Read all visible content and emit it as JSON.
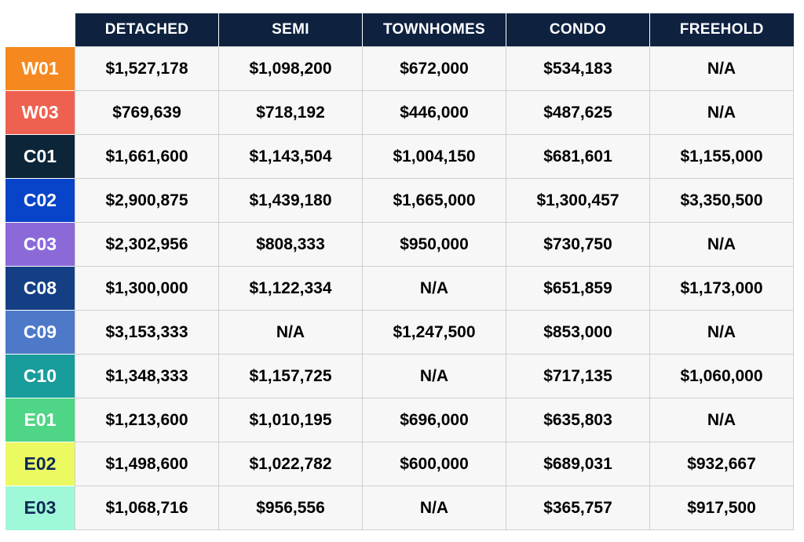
{
  "chart_data": {
    "type": "table",
    "title": "",
    "columns": [
      "DETACHED",
      "SEMI",
      "TOWNHOMES",
      "CONDO",
      "FREEHOLD"
    ],
    "rows": [
      {
        "label": "W01",
        "color": "#f5891f",
        "text_color": "#ffffff",
        "values": [
          "$1,527,178",
          "$1,098,200",
          "$672,000",
          "$534,183",
          "N/A"
        ]
      },
      {
        "label": "W03",
        "color": "#ee6150",
        "text_color": "#ffffff",
        "values": [
          "$769,639",
          "$718,192",
          "$446,000",
          "$487,625",
          "N/A"
        ]
      },
      {
        "label": "C01",
        "color": "#0c2539",
        "text_color": "#ffffff",
        "values": [
          "$1,661,600",
          "$1,143,504",
          "$1,004,150",
          "$681,601",
          "$1,155,000"
        ]
      },
      {
        "label": "C02",
        "color": "#0844c9",
        "text_color": "#ffffff",
        "values": [
          "$2,900,875",
          "$1,439,180",
          "$1,665,000",
          "$1,300,457",
          "$3,350,500"
        ]
      },
      {
        "label": "C03",
        "color": "#8b6ad8",
        "text_color": "#ffffff",
        "values": [
          "$2,302,956",
          "$808,333",
          "$950,000",
          "$730,750",
          "N/A"
        ]
      },
      {
        "label": "C08",
        "color": "#143f85",
        "text_color": "#ffffff",
        "values": [
          "$1,300,000",
          "$1,122,334",
          "N/A",
          "$651,859",
          "$1,173,000"
        ]
      },
      {
        "label": "C09",
        "color": "#4d79c8",
        "text_color": "#ffffff",
        "values": [
          "$3,153,333",
          "N/A",
          "$1,247,500",
          "$853,000",
          "N/A"
        ]
      },
      {
        "label": "C10",
        "color": "#199c9c",
        "text_color": "#ffffff",
        "values": [
          "$1,348,333",
          "$1,157,725",
          "N/A",
          "$717,135",
          "$1,060,000"
        ]
      },
      {
        "label": "E01",
        "color": "#4fd586",
        "text_color": "#ffffff",
        "values": [
          "$1,213,600",
          "$1,010,195",
          "$696,000",
          "$635,803",
          "N/A"
        ]
      },
      {
        "label": "E02",
        "color": "#ecfa62",
        "text_color": "#0e2a56",
        "values": [
          "$1,498,600",
          "$1,022,782",
          "$600,000",
          "$689,031",
          "$932,667"
        ]
      },
      {
        "label": "E03",
        "color": "#9ff8d8",
        "text_color": "#0e2a56",
        "values": [
          "$1,068,716",
          "$956,556",
          "N/A",
          "$365,757",
          "$917,500"
        ]
      }
    ]
  }
}
